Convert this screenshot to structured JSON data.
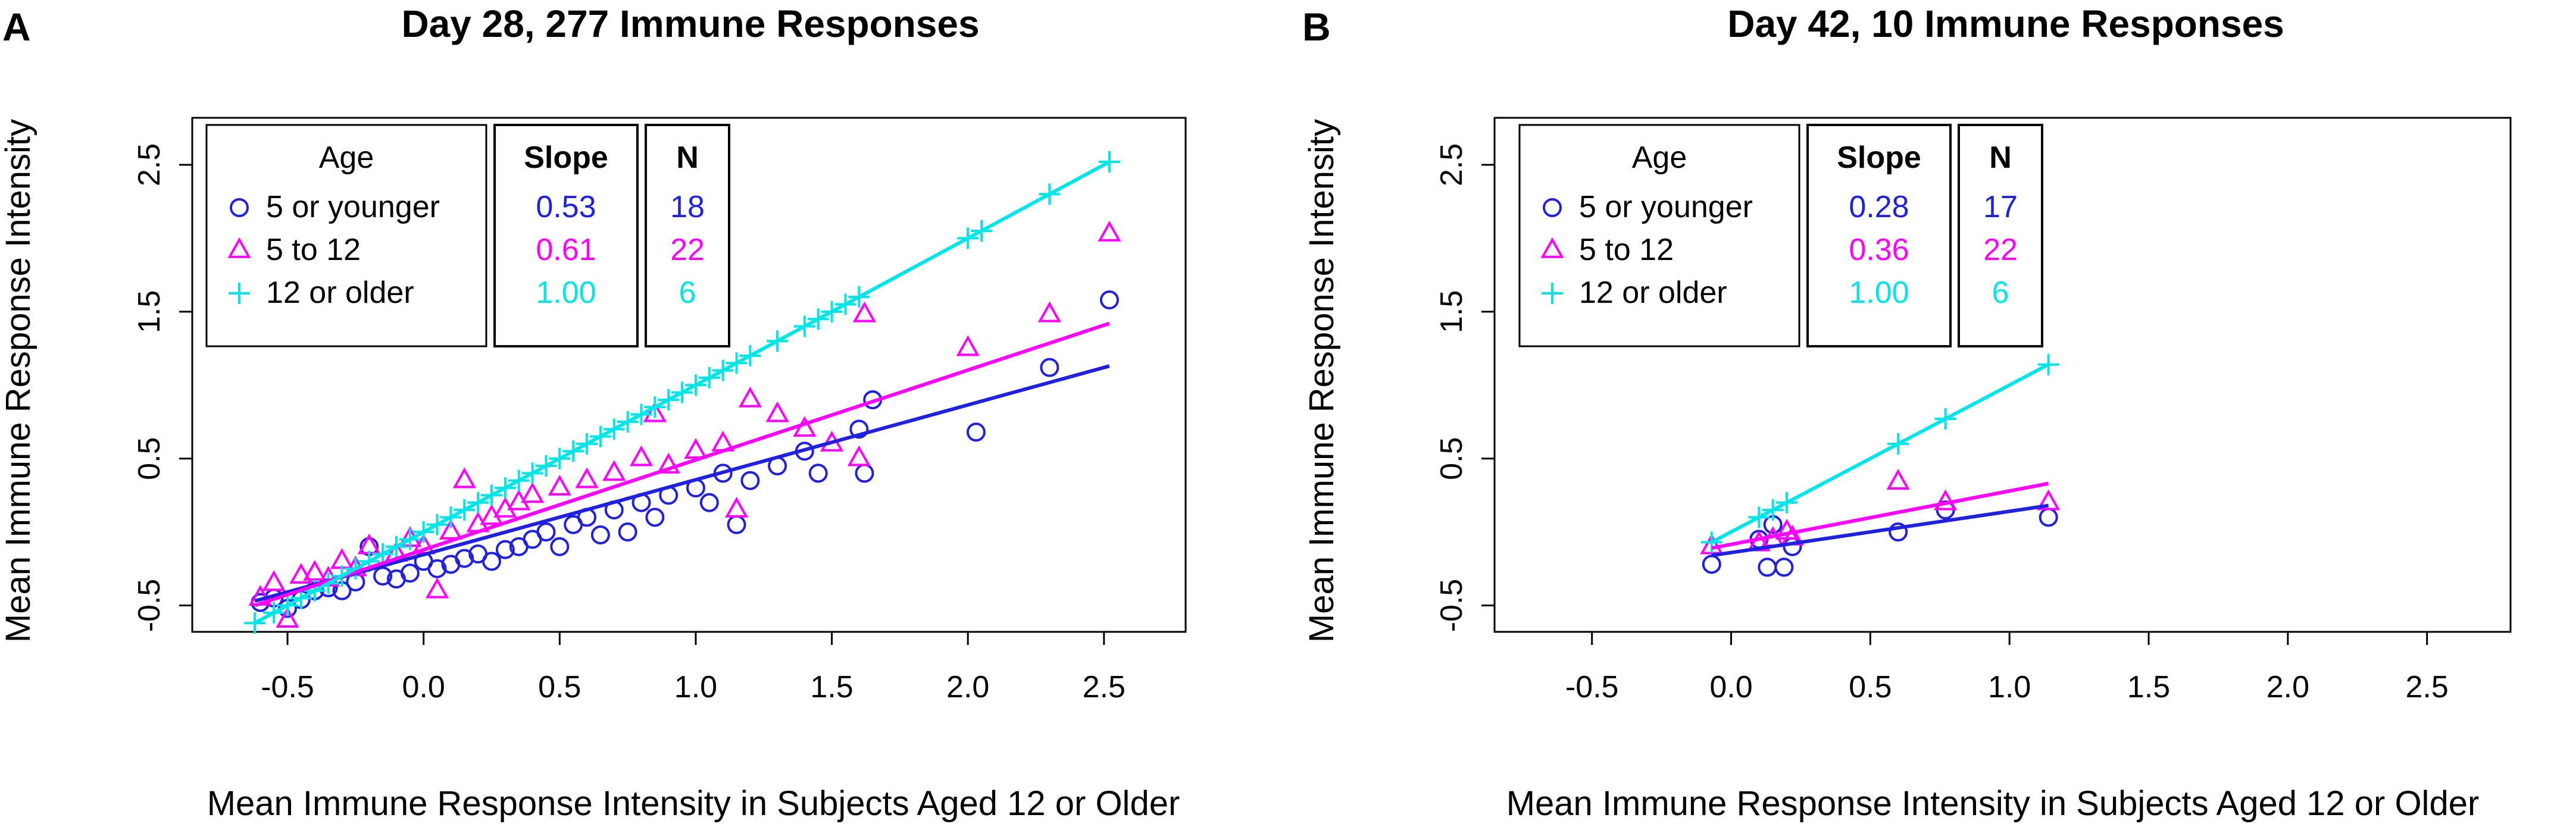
{
  "chart_data": [
    {
      "panel": "A",
      "type": "scatter",
      "title": "Day 28, 277 Immune Responses",
      "xlabel": "Mean Immune Response Intensity in Subjects Aged 12 or Older",
      "ylabel": "Mean Immune Response Intensity",
      "xlim": [
        -0.85,
        2.8
      ],
      "ylim": [
        -0.68,
        2.82
      ],
      "xticks": [
        -0.5,
        0.0,
        0.5,
        1.0,
        1.5,
        2.0,
        2.5
      ],
      "xtick_labels": [
        "-0.5",
        "0.0",
        "0.5",
        "1.0",
        "1.5",
        "2.0",
        "2.5"
      ],
      "yticks": [
        -0.5,
        0.5,
        1.5,
        2.5
      ],
      "ytick_labels": [
        "-0.5",
        "0.5",
        "1.5",
        "2.5"
      ],
      "legend": {
        "headers": {
          "age": "Age",
          "slope": "Slope",
          "n": "N"
        },
        "rows": [
          {
            "label": "5 or younger",
            "slope": "0.53",
            "n": "18",
            "color": "#2020e0",
            "marker": "circle"
          },
          {
            "label": "5 to 12",
            "slope": "0.61",
            "n": "22",
            "color": "#ff00ff",
            "marker": "triangle"
          },
          {
            "label": "12 or older",
            "slope": "1.00",
            "n": "6",
            "color": "#00e5e5",
            "marker": "plus"
          }
        ]
      },
      "series": [
        {
          "name": "5 or younger",
          "color": "#2020e0",
          "marker": "circle",
          "line_slope": 0.53,
          "line_x": [
            -0.62,
            2.52
          ],
          "line_y": [
            -0.47,
            1.13
          ],
          "points": [
            [
              -0.6,
              -0.48
            ],
            [
              -0.55,
              -0.45
            ],
            [
              -0.5,
              -0.52
            ],
            [
              -0.45,
              -0.46
            ],
            [
              -0.4,
              -0.4
            ],
            [
              -0.35,
              -0.38
            ],
            [
              -0.3,
              -0.4
            ],
            [
              -0.25,
              -0.34
            ],
            [
              -0.2,
              -0.1
            ],
            [
              -0.15,
              -0.3
            ],
            [
              -0.1,
              -0.32
            ],
            [
              -0.05,
              -0.28
            ],
            [
              0.0,
              -0.2
            ],
            [
              0.05,
              -0.25
            ],
            [
              0.1,
              -0.22
            ],
            [
              0.15,
              -0.18
            ],
            [
              0.2,
              -0.15
            ],
            [
              0.25,
              -0.2
            ],
            [
              0.3,
              -0.12
            ],
            [
              0.35,
              -0.1
            ],
            [
              0.4,
              -0.05
            ],
            [
              0.45,
              0.0
            ],
            [
              0.5,
              -0.1
            ],
            [
              0.55,
              0.05
            ],
            [
              0.6,
              0.1
            ],
            [
              0.65,
              -0.02
            ],
            [
              0.7,
              0.15
            ],
            [
              0.75,
              0.0
            ],
            [
              0.8,
              0.2
            ],
            [
              0.85,
              0.1
            ],
            [
              0.9,
              0.25
            ],
            [
              1.0,
              0.3
            ],
            [
              1.05,
              0.2
            ],
            [
              1.1,
              0.4
            ],
            [
              1.15,
              0.05
            ],
            [
              1.2,
              0.35
            ],
            [
              1.3,
              0.45
            ],
            [
              1.4,
              0.55
            ],
            [
              1.45,
              0.4
            ],
            [
              1.6,
              0.7
            ],
            [
              1.65,
              0.9
            ],
            [
              1.62,
              0.4
            ],
            [
              2.03,
              0.68
            ],
            [
              2.3,
              1.12
            ],
            [
              2.52,
              1.58
            ]
          ]
        },
        {
          "name": "5 to 12",
          "color": "#ff00ff",
          "marker": "triangle",
          "line_slope": 0.61,
          "line_x": [
            -0.62,
            2.52
          ],
          "line_y": [
            -0.5,
            1.42
          ],
          "points": [
            [
              -0.6,
              -0.45
            ],
            [
              -0.55,
              -0.35
            ],
            [
              -0.5,
              -0.6
            ],
            [
              -0.45,
              -0.3
            ],
            [
              -0.4,
              -0.28
            ],
            [
              -0.35,
              -0.32
            ],
            [
              -0.3,
              -0.2
            ],
            [
              -0.25,
              -0.25
            ],
            [
              -0.2,
              -0.1
            ],
            [
              -0.1,
              -0.15
            ],
            [
              -0.05,
              -0.05
            ],
            [
              0.0,
              -0.1
            ],
            [
              0.05,
              -0.4
            ],
            [
              0.1,
              0.0
            ],
            [
              0.15,
              0.35
            ],
            [
              0.2,
              0.05
            ],
            [
              0.25,
              0.1
            ],
            [
              0.3,
              0.15
            ],
            [
              0.35,
              0.2
            ],
            [
              0.4,
              0.25
            ],
            [
              0.5,
              0.3
            ],
            [
              0.6,
              0.35
            ],
            [
              0.7,
              0.4
            ],
            [
              0.8,
              0.5
            ],
            [
              0.85,
              0.8
            ],
            [
              0.9,
              0.45
            ],
            [
              1.0,
              0.55
            ],
            [
              1.1,
              0.6
            ],
            [
              1.15,
              0.15
            ],
            [
              1.2,
              0.9
            ],
            [
              1.3,
              0.8
            ],
            [
              1.4,
              0.7
            ],
            [
              1.5,
              0.6
            ],
            [
              1.6,
              0.5
            ],
            [
              1.62,
              1.48
            ],
            [
              2.0,
              1.25
            ],
            [
              2.3,
              1.48
            ],
            [
              2.52,
              2.03
            ]
          ]
        },
        {
          "name": "12 or older",
          "color": "#00e5e5",
          "marker": "plus",
          "line_slope": 1.0,
          "line_x": [
            -0.62,
            2.52
          ],
          "line_y": [
            -0.62,
            2.52
          ],
          "points": [
            [
              -0.62,
              -0.62
            ],
            [
              -0.55,
              -0.55
            ],
            [
              -0.5,
              -0.5
            ],
            [
              -0.45,
              -0.45
            ],
            [
              -0.4,
              -0.4
            ],
            [
              -0.35,
              -0.35
            ],
            [
              -0.3,
              -0.3
            ],
            [
              -0.25,
              -0.25
            ],
            [
              -0.2,
              -0.2
            ],
            [
              -0.15,
              -0.15
            ],
            [
              -0.1,
              -0.1
            ],
            [
              -0.05,
              -0.05
            ],
            [
              0.0,
              0.0
            ],
            [
              0.05,
              0.05
            ],
            [
              0.1,
              0.1
            ],
            [
              0.15,
              0.15
            ],
            [
              0.2,
              0.2
            ],
            [
              0.25,
              0.25
            ],
            [
              0.3,
              0.3
            ],
            [
              0.35,
              0.35
            ],
            [
              0.4,
              0.4
            ],
            [
              0.45,
              0.45
            ],
            [
              0.5,
              0.5
            ],
            [
              0.55,
              0.55
            ],
            [
              0.6,
              0.6
            ],
            [
              0.65,
              0.65
            ],
            [
              0.7,
              0.7
            ],
            [
              0.75,
              0.75
            ],
            [
              0.8,
              0.8
            ],
            [
              0.85,
              0.85
            ],
            [
              0.9,
              0.9
            ],
            [
              0.95,
              0.95
            ],
            [
              1.0,
              1.0
            ],
            [
              1.05,
              1.05
            ],
            [
              1.1,
              1.1
            ],
            [
              1.15,
              1.15
            ],
            [
              1.2,
              1.2
            ],
            [
              1.3,
              1.3
            ],
            [
              1.4,
              1.4
            ],
            [
              1.45,
              1.45
            ],
            [
              1.5,
              1.5
            ],
            [
              1.55,
              1.55
            ],
            [
              1.6,
              1.6
            ],
            [
              2.0,
              2.0
            ],
            [
              2.05,
              2.05
            ],
            [
              2.3,
              2.3
            ],
            [
              2.52,
              2.52
            ]
          ]
        }
      ]
    },
    {
      "panel": "B",
      "type": "scatter",
      "title": "Day 42, 10 Immune Responses",
      "xlabel": "Mean Immune Response Intensity in Subjects Aged 12 or Older",
      "ylabel": "Mean Immune Response Intensity",
      "xlim": [
        -0.85,
        2.8
      ],
      "ylim": [
        -0.68,
        2.82
      ],
      "xticks": [
        -0.5,
        0.0,
        0.5,
        1.0,
        1.5,
        2.0,
        2.5
      ],
      "xtick_labels": [
        "-0.5",
        "0.0",
        "0.5",
        "1.0",
        "1.5",
        "2.0",
        "2.5"
      ],
      "yticks": [
        -0.5,
        0.5,
        1.5,
        2.5
      ],
      "ytick_labels": [
        "-0.5",
        "0.5",
        "1.5",
        "2.5"
      ],
      "legend": {
        "headers": {
          "age": "Age",
          "slope": "Slope",
          "n": "N"
        },
        "rows": [
          {
            "label": "5 or younger",
            "slope": "0.28",
            "n": "17",
            "color": "#2020e0",
            "marker": "circle"
          },
          {
            "label": "5 to 12",
            "slope": "0.36",
            "n": "22",
            "color": "#ff00ff",
            "marker": "triangle"
          },
          {
            "label": "12 or older",
            "slope": "1.00",
            "n": "6",
            "color": "#00e5e5",
            "marker": "plus"
          }
        ]
      },
      "series": [
        {
          "name": "5 or younger",
          "color": "#2020e0",
          "marker": "circle",
          "line_slope": 0.28,
          "line_x": [
            -0.07,
            1.14
          ],
          "line_y": [
            -0.16,
            0.18
          ],
          "points": [
            [
              -0.07,
              -0.22
            ],
            [
              0.1,
              -0.05
            ],
            [
              0.13,
              -0.24
            ],
            [
              0.15,
              0.05
            ],
            [
              0.19,
              -0.24
            ],
            [
              0.22,
              -0.1
            ],
            [
              0.6,
              0.0
            ],
            [
              0.77,
              0.15
            ],
            [
              1.14,
              0.1
            ]
          ]
        },
        {
          "name": "5 to 12",
          "color": "#ff00ff",
          "marker": "triangle",
          "line_slope": 0.36,
          "line_x": [
            -0.07,
            1.14
          ],
          "line_y": [
            -0.11,
            0.33
          ],
          "points": [
            [
              -0.07,
              -0.1
            ],
            [
              0.1,
              -0.08
            ],
            [
              0.15,
              -0.05
            ],
            [
              0.2,
              0.0
            ],
            [
              0.22,
              -0.04
            ],
            [
              0.6,
              0.34
            ],
            [
              0.77,
              0.2
            ],
            [
              1.14,
              0.2
            ]
          ]
        },
        {
          "name": "12 or older",
          "color": "#00e5e5",
          "marker": "plus",
          "line_slope": 1.0,
          "line_x": [
            -0.07,
            1.14
          ],
          "line_y": [
            -0.07,
            1.14
          ],
          "points": [
            [
              -0.07,
              -0.07
            ],
            [
              0.1,
              0.1
            ],
            [
              0.15,
              0.15
            ],
            [
              0.2,
              0.2
            ],
            [
              0.6,
              0.6
            ],
            [
              0.77,
              0.77
            ],
            [
              1.14,
              1.14
            ]
          ]
        }
      ]
    }
  ]
}
